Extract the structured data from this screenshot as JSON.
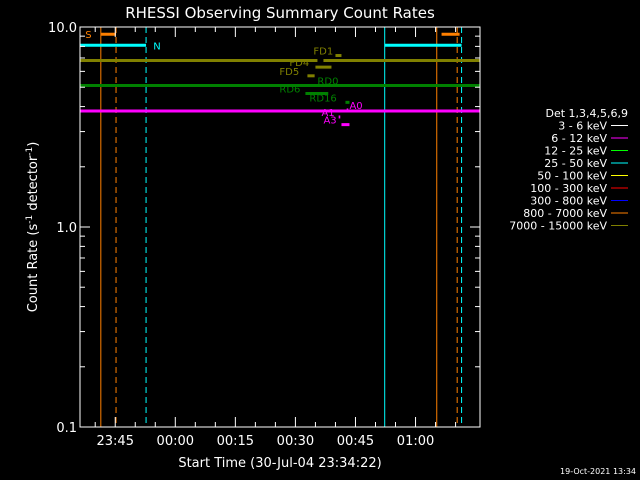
{
  "chart_data": {
    "type": "line",
    "title": "RHESSI Observing Summary Count Rates",
    "xlabel": "Start Time (30-Jul-04 23:34:22)",
    "ylabel": "Count Rate (s⁻¹ detector⁻¹)",
    "ylabel_parts": {
      "base": "Count Rate (s",
      "sup1": "-1",
      "mid": " detector",
      "sup2": "-1",
      "end": ")"
    },
    "yscale": "log",
    "ylim": [
      0.1,
      10.0
    ],
    "xlim_minutes": [
      -23.8,
      76.1
    ],
    "x_ticks": [
      {
        "min": -15,
        "label": "23:45"
      },
      {
        "min": 0,
        "label": "00:00"
      },
      {
        "min": 15,
        "label": "00:15"
      },
      {
        "min": 30,
        "label": "00:30"
      },
      {
        "min": 45,
        "label": "00:45"
      },
      {
        "min": 60,
        "label": "01:00"
      }
    ],
    "y_ticks": [
      {
        "val": 10.0,
        "label": "10.0"
      },
      {
        "val": 1.0,
        "label": "1.0"
      },
      {
        "val": 0.1,
        "label": "0.1"
      }
    ],
    "legend": {
      "title": "Det 1,3,4,5,6,9",
      "entries": [
        {
          "label": "3 - 6 keV",
          "color": "#ffffff"
        },
        {
          "label": "6 - 12 keV",
          "color": "#ff00ff"
        },
        {
          "label": "12 - 25 keV",
          "color": "#00ff00"
        },
        {
          "label": "25 - 50 keV",
          "color": "#00ffff"
        },
        {
          "label": "50 - 100 keV",
          "color": "#ffff00"
        },
        {
          "label": "100 - 300 keV",
          "color": "#ff0000"
        },
        {
          "label": "300 - 800 keV",
          "color": "#0000ff"
        },
        {
          "label": "800 - 7000 keV",
          "color": "#ff8000"
        },
        {
          "label": "7000 - 15000 keV",
          "color": "#808000"
        }
      ]
    },
    "series": [
      {
        "name": "7000 - 15000 keV",
        "color": "#808000",
        "y": 6.8,
        "segments": [
          [
            -23.8,
            35.5
          ],
          [
            37.0,
            76.1
          ]
        ]
      },
      {
        "name": "12 - 25 keV",
        "color": "#008000",
        "y": 5.1,
        "segments": [
          [
            -23.8,
            76.1
          ]
        ]
      },
      {
        "name": "6 - 12 keV",
        "color": "#ff00ff",
        "y": 3.8,
        "segments": [
          [
            -23.8,
            76.1
          ]
        ]
      }
    ],
    "vlines": [
      {
        "min": -18.6,
        "color": "#ff8000",
        "style": "solid"
      },
      {
        "min": -14.8,
        "color": "#ff8000",
        "style": "dashed"
      },
      {
        "min": -7.3,
        "color": "#00ffff",
        "style": "dashed"
      },
      {
        "min": 52.3,
        "color": "#00ffff",
        "style": "solid"
      },
      {
        "min": 65.3,
        "color": "#ff8000",
        "style": "solid"
      },
      {
        "min": 70.4,
        "color": "#ff8000",
        "style": "dashed"
      },
      {
        "min": 71.5,
        "color": "#00ffff",
        "style": "dashed"
      }
    ],
    "flag_bars": [
      {
        "label": "S",
        "color": "#ff8000",
        "y": 9.2,
        "range": [
          -18.6,
          -14.8
        ],
        "label_min": -22.5
      },
      {
        "label": "",
        "color": "#ff8000",
        "y": 9.2,
        "range": [
          66.5,
          71.0
        ],
        "label_min": null
      },
      {
        "label": "N",
        "color": "#00ffff",
        "y": 8.1,
        "range": [
          -23.8,
          -7.3
        ],
        "label_min": -5.5
      },
      {
        "label": "",
        "color": "#00ffff",
        "y": 8.1,
        "range": [
          52.3,
          71.5
        ],
        "label_min": null
      }
    ],
    "markers": [
      {
        "label": "FD1",
        "color": "#808000",
        "y": 7.2,
        "range": [
          40.0,
          41.5
        ],
        "label_min": 34.5
      },
      {
        "label": "FD4",
        "color": "#808000",
        "y": 6.3,
        "range": [
          35.0,
          39.0
        ],
        "label_min": 28.5
      },
      {
        "label": "FD5",
        "color": "#808000",
        "y": 5.7,
        "range": [
          33.0,
          34.8
        ],
        "label_min": 26.0
      },
      {
        "label": "RD0",
        "color": "#008000",
        "y": 5.1,
        "range": [
          39.5,
          41.0
        ],
        "label_min": 35.5
      },
      {
        "label": "RD6",
        "color": "#008000",
        "y": 4.65,
        "range": [
          32.5,
          38.2
        ],
        "label_min": 26.0
      },
      {
        "label": "RD16",
        "color": "#008000",
        "y": 4.2,
        "range": [
          42.5,
          43.5
        ],
        "label_min": 33.5
      },
      {
        "label": "A0",
        "color": "#ff00ff",
        "y": 3.85,
        "range": [
          42.8,
          43.2
        ],
        "label_min": 43.5
      },
      {
        "label": "A1",
        "color": "#ff00ff",
        "y": 3.55,
        "range": [
          40.8,
          41.2
        ],
        "label_min": 36.5
      },
      {
        "label": "A3",
        "color": "#ff00ff",
        "y": 3.25,
        "range": [
          41.5,
          43.5
        ],
        "label_min": 37.0
      }
    ]
  },
  "timestamp": "19-Oct-2021 13:34"
}
